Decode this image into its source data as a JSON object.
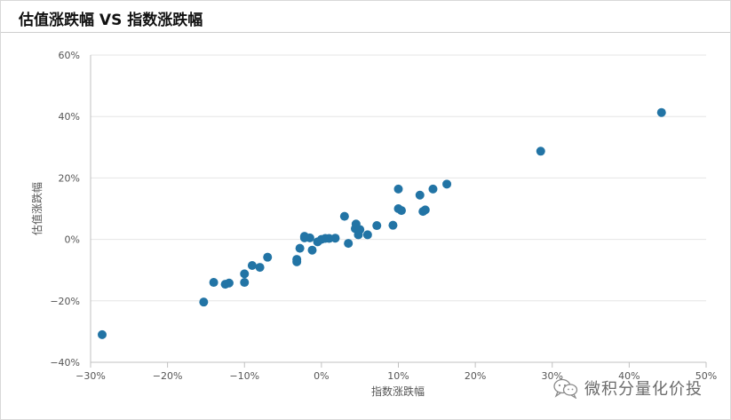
{
  "header": {
    "title": "估值涨跌幅 VS 指数涨跌幅"
  },
  "watermark": {
    "text": "微积分量化价投",
    "icon": "wechat-chat-bubbles-icon"
  },
  "chart_data": {
    "type": "scatter",
    "title": "",
    "xlabel": "指数涨跌幅",
    "ylabel": "估值涨跌幅",
    "xlim": [
      -30,
      50
    ],
    "ylim": [
      -40,
      60
    ],
    "x_ticks": [
      "−30%",
      "−20%",
      "−10%",
      "0%",
      "10%",
      "20%",
      "30%",
      "40%",
      "50%"
    ],
    "y_ticks": [
      "60%",
      "40%",
      "20%",
      "0%",
      "−20%",
      "−40%"
    ],
    "grid": "horizontal",
    "legend": "none",
    "colors": {
      "point": "#2274a5",
      "grid": "#e6e6e6",
      "axis": "#c0c0c0",
      "tick_text": "#555555"
    },
    "series": [
      {
        "values": [
          [
            -28.5,
            -31
          ],
          [
            -15.3,
            -20.4
          ],
          [
            -14,
            -14
          ],
          [
            -12.5,
            -14.6
          ],
          [
            -12,
            -14.2
          ],
          [
            -10,
            -11.2
          ],
          [
            -10,
            -14
          ],
          [
            -9,
            -8.5
          ],
          [
            -8,
            -9.1
          ],
          [
            -7,
            -5.8
          ],
          [
            -3.2,
            -6.5
          ],
          [
            -3.2,
            -7.3
          ],
          [
            -2.8,
            -2.9
          ],
          [
            -2.2,
            0.5
          ],
          [
            -2.2,
            1
          ],
          [
            -1.5,
            0.5
          ],
          [
            -1.2,
            -3.5
          ],
          [
            -0.5,
            -0.8
          ],
          [
            0,
            0
          ],
          [
            0.5,
            0.3
          ],
          [
            1,
            0.3
          ],
          [
            1.8,
            0.4
          ],
          [
            3,
            7.5
          ],
          [
            3.5,
            -1.3
          ],
          [
            4.4,
            3.5
          ],
          [
            4.5,
            5
          ],
          [
            4.8,
            1.5
          ],
          [
            5,
            3.2
          ],
          [
            6,
            1.5
          ],
          [
            7.2,
            4.5
          ],
          [
            9.3,
            4.6
          ],
          [
            10,
            10
          ],
          [
            10,
            16.4
          ],
          [
            10.4,
            9.4
          ],
          [
            12.8,
            14.4
          ],
          [
            13.2,
            9.1
          ],
          [
            13.5,
            9.6
          ],
          [
            14.5,
            16.4
          ],
          [
            16.3,
            18
          ],
          [
            28.5,
            28.7
          ],
          [
            44.2,
            41.3
          ]
        ]
      }
    ]
  }
}
